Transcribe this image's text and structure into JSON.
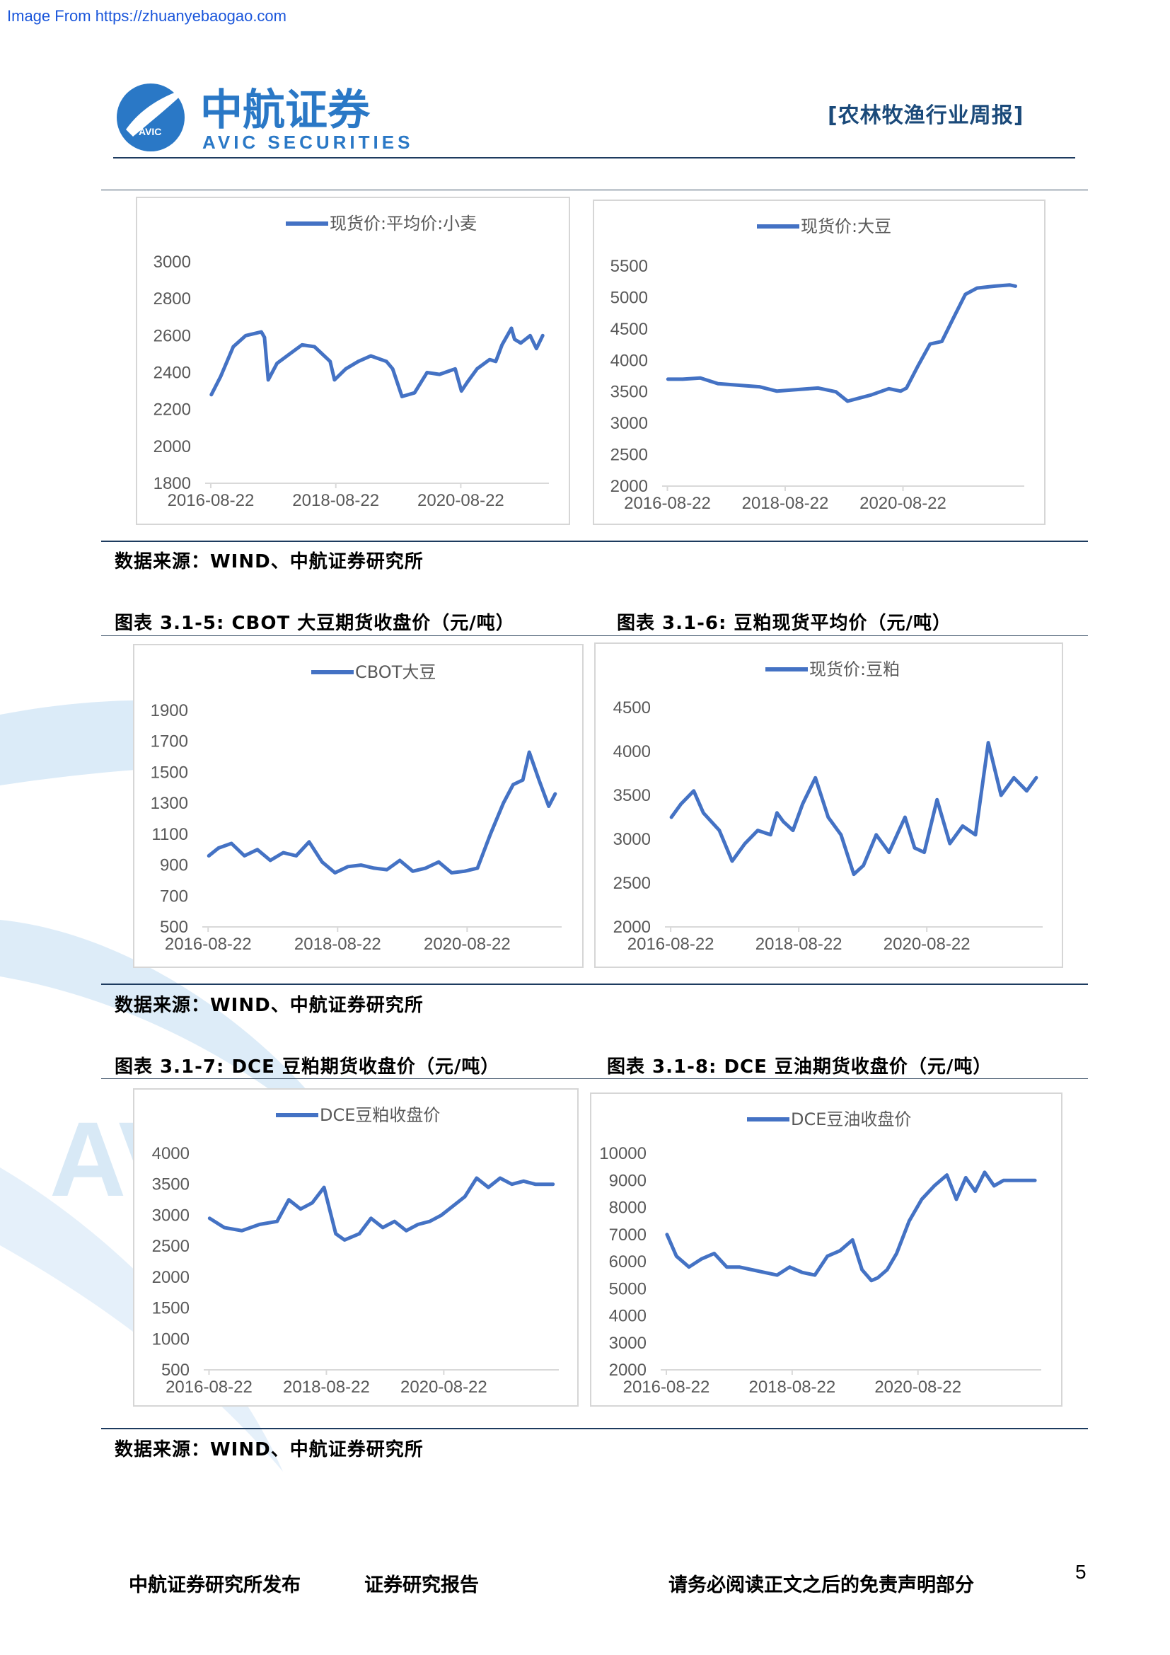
{
  "watermark": "Image From https://zhuanyebaogao.com",
  "brand": {
    "name_cn": "中航证券",
    "name_en": "AVIC SECURITIES",
    "badge": "AVIC",
    "color": "#2a78c6"
  },
  "report_type": "[农林牧渔行业周报]",
  "source_note": "数据来源：WIND、中航证券研究所",
  "figure_titles": {
    "f5": "图表 3.1-5:  CBOT 大豆期货收盘价（元/吨）",
    "f6": "图表 3.1-6:  豆粕现货平均价（元/吨）",
    "f7": "图表 3.1-7:  DCE 豆粕期货收盘价（元/吨）",
    "f8": "图表 3.1-8:  DCE 豆油期货收盘价（元/吨）"
  },
  "footer": {
    "publisher": "中航证券研究所发布",
    "report": "证券研究报告",
    "disclaimer": "请务必阅读正文之后的免责声明部分",
    "page": "5"
  },
  "line_color": "#4472c4",
  "chart_data": [
    {
      "id": "wheat",
      "type": "line",
      "series": [
        {
          "name": "现货价:平均价:小麦"
        }
      ],
      "ylim": [
        1800,
        3000
      ],
      "yticks": [
        1800,
        2000,
        2200,
        2400,
        2600,
        2800,
        3000
      ],
      "xticks": [
        "2016-08-22",
        "2018-08-22",
        "2020-08-22"
      ],
      "x": [
        2016.65,
        2016.8,
        2017.0,
        2017.2,
        2017.45,
        2017.5,
        2017.56,
        2017.7,
        2017.9,
        2018.1,
        2018.3,
        2018.55,
        2018.62,
        2018.8,
        2019.0,
        2019.2,
        2019.45,
        2019.55,
        2019.7,
        2019.9,
        2020.1,
        2020.3,
        2020.55,
        2020.65,
        2020.75,
        2020.9,
        2021.1,
        2021.2,
        2021.3,
        2021.45,
        2021.5,
        2021.6,
        2021.75,
        2021.85,
        2021.95
      ],
      "y": [
        2280,
        2380,
        2540,
        2600,
        2620,
        2590,
        2360,
        2450,
        2500,
        2550,
        2540,
        2460,
        2360,
        2420,
        2460,
        2490,
        2460,
        2420,
        2270,
        2290,
        2400,
        2390,
        2420,
        2300,
        2350,
        2420,
        2470,
        2460,
        2550,
        2640,
        2580,
        2560,
        2600,
        2530,
        2600
      ]
    },
    {
      "id": "soybean",
      "type": "line",
      "series": [
        {
          "name": "现货价:大豆"
        }
      ],
      "ylim": [
        2000,
        5500
      ],
      "yticks": [
        2000,
        2500,
        3000,
        3500,
        4000,
        4500,
        5000,
        5500
      ],
      "xticks": [
        "2016-08-22",
        "2018-08-22",
        "2020-08-22"
      ],
      "x": [
        2016.65,
        2016.9,
        2017.2,
        2017.5,
        2017.9,
        2018.2,
        2018.5,
        2018.9,
        2019.2,
        2019.5,
        2019.7,
        2019.9,
        2020.1,
        2020.4,
        2020.6,
        2020.7,
        2020.9,
        2021.1,
        2021.3,
        2021.5,
        2021.7,
        2021.9,
        2022.2,
        2022.45,
        2022.55
      ],
      "y": [
        3700,
        3700,
        3720,
        3630,
        3600,
        3580,
        3510,
        3540,
        3560,
        3500,
        3350,
        3400,
        3450,
        3550,
        3510,
        3560,
        3920,
        4260,
        4300,
        4680,
        5050,
        5150,
        5180,
        5200,
        5180
      ]
    },
    {
      "id": "cbot",
      "type": "line",
      "series": [
        {
          "name": "CBOT大豆"
        }
      ],
      "ylim": [
        500,
        1900
      ],
      "yticks": [
        500,
        700,
        900,
        1100,
        1300,
        1500,
        1700,
        1900
      ],
      "xticks": [
        "2016-08-22",
        "2018-08-22",
        "2020-08-22"
      ],
      "x": [
        2016.65,
        2016.8,
        2017.0,
        2017.2,
        2017.4,
        2017.6,
        2017.8,
        2018.0,
        2018.2,
        2018.4,
        2018.6,
        2018.8,
        2019.0,
        2019.2,
        2019.4,
        2019.6,
        2019.8,
        2020.0,
        2020.2,
        2020.4,
        2020.6,
        2020.8,
        2021.0,
        2021.2,
        2021.35,
        2021.5,
        2021.6,
        2021.75,
        2021.9,
        2022.0
      ],
      "y": [
        960,
        1010,
        1040,
        960,
        1000,
        930,
        980,
        960,
        1050,
        920,
        850,
        890,
        900,
        880,
        870,
        930,
        860,
        880,
        920,
        850,
        860,
        880,
        1100,
        1300,
        1420,
        1450,
        1630,
        1450,
        1280,
        1360
      ]
    },
    {
      "id": "meal_spot",
      "type": "line",
      "series": [
        {
          "name": "现货价:豆粕"
        }
      ],
      "ylim": [
        2000,
        4500
      ],
      "yticks": [
        2000,
        2500,
        3000,
        3500,
        4000,
        4500
      ],
      "xticks": [
        "2016-08-22",
        "2018-08-22",
        "2020-08-22"
      ],
      "x": [
        2016.65,
        2016.8,
        2017.0,
        2017.15,
        2017.4,
        2017.6,
        2017.8,
        2018.0,
        2018.2,
        2018.3,
        2018.4,
        2018.55,
        2018.7,
        2018.9,
        2019.1,
        2019.3,
        2019.5,
        2019.65,
        2019.85,
        2020.05,
        2020.3,
        2020.45,
        2020.6,
        2020.8,
        2021.0,
        2021.2,
        2021.4,
        2021.6,
        2021.8,
        2022.0,
        2022.2,
        2022.35
      ],
      "y": [
        3250,
        3400,
        3550,
        3300,
        3100,
        2750,
        2950,
        3100,
        3050,
        3300,
        3200,
        3100,
        3400,
        3700,
        3250,
        3050,
        2600,
        2700,
        3050,
        2850,
        3250,
        2900,
        2850,
        3450,
        2950,
        3150,
        3050,
        4100,
        3500,
        3700,
        3550,
        3700
      ]
    },
    {
      "id": "dce_meal",
      "type": "line",
      "series": [
        {
          "name": "DCE豆粕收盘价"
        }
      ],
      "ylim": [
        500,
        4000
      ],
      "yticks": [
        500,
        1000,
        1500,
        2000,
        2500,
        3000,
        3500,
        4000
      ],
      "xticks": [
        "2016-08-22",
        "2018-08-22",
        "2020-08-22"
      ],
      "x": [
        2016.65,
        2016.9,
        2017.2,
        2017.5,
        2017.8,
        2018.0,
        2018.2,
        2018.4,
        2018.6,
        2018.8,
        2018.95,
        2019.2,
        2019.4,
        2019.6,
        2019.8,
        2020.0,
        2020.2,
        2020.4,
        2020.6,
        2020.8,
        2021.0,
        2021.2,
        2021.4,
        2021.6,
        2021.8,
        2022.0,
        2022.2,
        2022.5
      ],
      "y": [
        2950,
        2800,
        2750,
        2850,
        2900,
        3250,
        3100,
        3200,
        3450,
        2700,
        2600,
        2700,
        2950,
        2800,
        2900,
        2750,
        2850,
        2900,
        3000,
        3150,
        3300,
        3600,
        3450,
        3600,
        3500,
        3550,
        3500,
        3500
      ]
    },
    {
      "id": "dce_oil",
      "type": "line",
      "series": [
        {
          "name": "DCE豆油收盘价"
        }
      ],
      "ylim": [
        2000,
        10000
      ],
      "yticks": [
        2000,
        3000,
        4000,
        5000,
        6000,
        7000,
        8000,
        9000,
        10000
      ],
      "xticks": [
        "2016-08-22",
        "2018-08-22",
        "2020-08-22"
      ],
      "x": [
        2016.65,
        2016.8,
        2017.0,
        2017.2,
        2017.4,
        2017.6,
        2017.8,
        2018.0,
        2018.2,
        2018.4,
        2018.6,
        2018.8,
        2019.0,
        2019.2,
        2019.4,
        2019.6,
        2019.75,
        2019.9,
        2020.0,
        2020.15,
        2020.3,
        2020.5,
        2020.7,
        2020.9,
        2021.1,
        2021.25,
        2021.4,
        2021.55,
        2021.7,
        2021.85,
        2022.0,
        2022.2,
        2022.5
      ],
      "y": [
        7000,
        6200,
        5800,
        6100,
        6300,
        5800,
        5800,
        5700,
        5600,
        5500,
        5800,
        5600,
        5500,
        6200,
        6400,
        6800,
        5700,
        5300,
        5400,
        5700,
        6300,
        7500,
        8300,
        8800,
        9200,
        8300,
        9100,
        8600,
        9300,
        8800,
        9000,
        9000,
        9000
      ]
    }
  ]
}
